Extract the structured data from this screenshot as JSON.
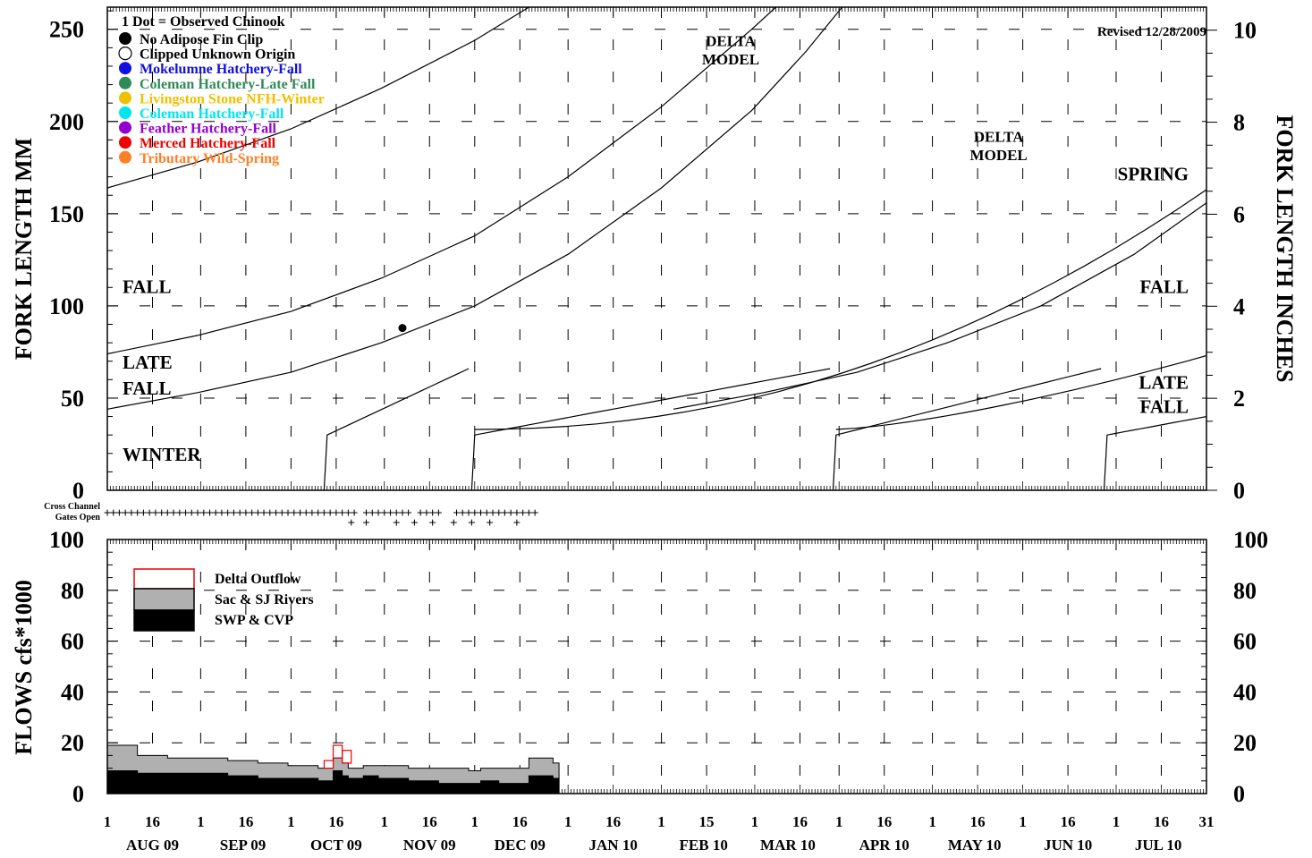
{
  "revised": "Revised 12/28/2009",
  "gates_label": [
    "Cross Channel",
    "Gates Open"
  ],
  "chart_data": [
    {
      "type": "scatter",
      "name": "fork-length",
      "ylabel_left": "FORK  LENGTH  MM",
      "ylabel_right": "FORK  LENGTH  INCHES",
      "ylim": [
        0,
        262
      ],
      "yticks": [
        0,
        50,
        100,
        150,
        200,
        250
      ],
      "ylim_right": [
        0,
        10.5
      ],
      "yticks_right": [
        0,
        2,
        4,
        6,
        8,
        10
      ],
      "xlim_days": [
        0,
        365
      ],
      "legend_title": "1 Dot = Observed Chinook",
      "legend": [
        {
          "label": "No Adipose Fin Clip",
          "color": "#000000",
          "outline": false
        },
        {
          "label": "Clipped Unknown Origin",
          "color": "#ffffff",
          "outline": true
        },
        {
          "label": "Mokelumne Hatchery-Fall",
          "color": "#1010e0",
          "outline": false
        },
        {
          "label": "Coleman Hatchery-Late Fall",
          "color": "#2e8b57",
          "outline": false
        },
        {
          "label": "Livingston Stone NFH-Winter",
          "color": "#f0c000",
          "outline": false
        },
        {
          "label": "Coleman Hatchery-Fall",
          "color": "#00e5ee",
          "outline": false
        },
        {
          "label": "Feather Hatchery-Fall",
          "color": "#9400d3",
          "outline": false
        },
        {
          "label": "Merced Hatchery-Fall",
          "color": "#ee0000",
          "outline": false
        },
        {
          "label": "Tributary Wild-Spring",
          "color": "#ff7f24",
          "outline": false
        }
      ],
      "points": [
        {
          "date": "2009-11-07",
          "fork_length_mm": 88,
          "type": "No Adipose Fin Clip"
        }
      ],
      "curves": [
        {
          "points": [
            [
              0,
              164
            ],
            [
              30,
              178
            ],
            [
              61,
              196
            ],
            [
              91,
              218
            ],
            [
              122,
              244
            ],
            [
              140,
              262
            ]
          ]
        },
        {
          "points": [
            [
              0,
              74
            ],
            [
              30,
              84
            ],
            [
              61,
              97
            ],
            [
              91,
              115
            ],
            [
              122,
              138
            ],
            [
              153,
              170
            ],
            [
              184,
              208
            ],
            [
              214,
              250
            ],
            [
              222,
              262
            ]
          ]
        },
        {
          "points": [
            [
              0,
              44
            ],
            [
              30,
              53
            ],
            [
              61,
              64
            ],
            [
              91,
              80
            ],
            [
              122,
              100
            ],
            [
              153,
              128
            ],
            [
              184,
              164
            ],
            [
              214,
              206
            ],
            [
              232,
              238
            ],
            [
              244,
              262
            ]
          ]
        },
        {
          "points": [
            [
              0,
              44
            ],
            [
              30,
              53
            ],
            [
              61,
              64
            ],
            [
              91,
              80
            ],
            [
              122,
              100
            ],
            [
              153,
              128
            ],
            [
              184,
              164
            ],
            [
              214,
              206
            ],
            [
              232,
              238
            ],
            [
              244,
              262
            ]
          ],
          "offset_days": 188
        },
        {
          "points": [
            [
              236,
              79
            ],
            [
              252,
              84
            ],
            [
              274,
              90
            ],
            [
              301,
              97
            ],
            [
              318,
              100
            ],
            [
              304,
              96
            ],
            [
              282,
              89
            ],
            [
              272,
              86
            ]
          ]
        }
      ],
      "annotations": [
        {
          "text": "DELTA",
          "day": 207,
          "mm": 241
        },
        {
          "text": "MODEL",
          "day": 207,
          "mm": 231
        },
        {
          "text": "DELTA",
          "day": 296,
          "mm": 189
        },
        {
          "text": "MODEL",
          "day": 296,
          "mm": 179
        },
        {
          "text": "SPRING",
          "day": 352,
          "mm": 168
        },
        {
          "text": "FALL",
          "day": 11,
          "mm": 107
        },
        {
          "text": "FALL",
          "day": 352,
          "mm": 107
        },
        {
          "text": "LATE",
          "day": 11,
          "mm": 66
        },
        {
          "text": "FALL",
          "day": 11,
          "mm": 52
        },
        {
          "text": "LATE",
          "day": 352,
          "mm": 55
        },
        {
          "text": "FALL",
          "day": 352,
          "mm": 42
        },
        {
          "text": "WINTER",
          "day": 16,
          "mm": 16
        }
      ],
      "run_labels": {
        "winter_starts": [
          73,
          122,
          242,
          332
        ]
      }
    },
    {
      "type": "area",
      "name": "flows",
      "ylabel": "FLOWS  cfs*1000",
      "ylim": [
        0,
        100
      ],
      "yticks": [
        0,
        20,
        40,
        60,
        80,
        100
      ],
      "legend": [
        {
          "label": "Delta Outflow",
          "fill": "#ffffff",
          "stroke": "#ee0000"
        },
        {
          "label": "Sac & SJ Rivers",
          "fill": "#b0b0b0",
          "stroke": "#000000"
        },
        {
          "label": "SWP & CVP",
          "fill": "#000000",
          "stroke": "#000000"
        }
      ],
      "x_days": [
        0,
        10,
        20,
        30,
        40,
        50,
        60,
        70,
        72,
        75,
        78,
        80,
        85,
        90,
        100,
        110,
        120,
        124,
        130,
        140,
        148
      ],
      "sac_sj": [
        19,
        15,
        14,
        14,
        13,
        12,
        11,
        10,
        10,
        14,
        12,
        10,
        11,
        11,
        10,
        10,
        9,
        10,
        10,
        14,
        12
      ],
      "swp_cvp": [
        9,
        8,
        8,
        8,
        7,
        6,
        6,
        5,
        5,
        9,
        7,
        6,
        7,
        6,
        5,
        4,
        4,
        5,
        4,
        7,
        6
      ],
      "delta_outflow": [
        null,
        null,
        null,
        null,
        null,
        null,
        null,
        null,
        13,
        19,
        17,
        null,
        null,
        null,
        null,
        null,
        null,
        null,
        null,
        null,
        null
      ]
    }
  ],
  "gates_open_days": [
    0,
    2,
    4,
    6,
    8,
    10,
    12,
    14,
    16,
    18,
    20,
    22,
    24,
    26,
    28,
    30,
    32,
    34,
    36,
    38,
    40,
    42,
    44,
    46,
    48,
    50,
    52,
    54,
    56,
    58,
    60,
    62,
    64,
    66,
    68,
    70,
    72,
    74,
    76,
    78,
    80,
    82,
    86,
    88,
    90,
    92,
    94,
    96,
    98,
    100,
    104,
    106,
    108,
    110,
    116,
    118,
    120,
    122,
    124,
    126,
    128,
    130,
    132,
    134,
    136,
    138,
    140,
    142
  ],
  "gates_low_days": [
    81,
    86,
    96,
    102,
    108,
    115,
    121,
    127,
    136
  ],
  "x_axis": {
    "days": [
      0,
      15,
      31,
      46,
      61,
      76,
      92,
      107,
      122,
      137,
      153,
      168,
      184,
      199,
      215,
      230,
      243,
      258,
      274,
      289,
      304,
      319,
      335,
      350,
      365
    ],
    "day_labels": [
      "1",
      "16",
      "1",
      "16",
      "1",
      "16",
      "1",
      "16",
      "1",
      "16",
      "1",
      "16",
      "1",
      "15",
      "1",
      "16",
      "1",
      "16",
      "1",
      "16",
      "1",
      "16",
      "1",
      "16",
      "31"
    ],
    "months": [
      {
        "label": "AUG 09",
        "day": 15
      },
      {
        "label": "SEP 09",
        "day": 45
      },
      {
        "label": "OCT 09",
        "day": 76
      },
      {
        "label": "NOV 09",
        "day": 107
      },
      {
        "label": "DEC 09",
        "day": 137
      },
      {
        "label": "JAN 10",
        "day": 168
      },
      {
        "label": "FEB 10",
        "day": 198
      },
      {
        "label": "MAR 10",
        "day": 226
      },
      {
        "label": "APR 10",
        "day": 258
      },
      {
        "label": "MAY 10",
        "day": 288
      },
      {
        "label": "JUN 10",
        "day": 319
      },
      {
        "label": "JUL 10",
        "day": 349
      }
    ]
  }
}
